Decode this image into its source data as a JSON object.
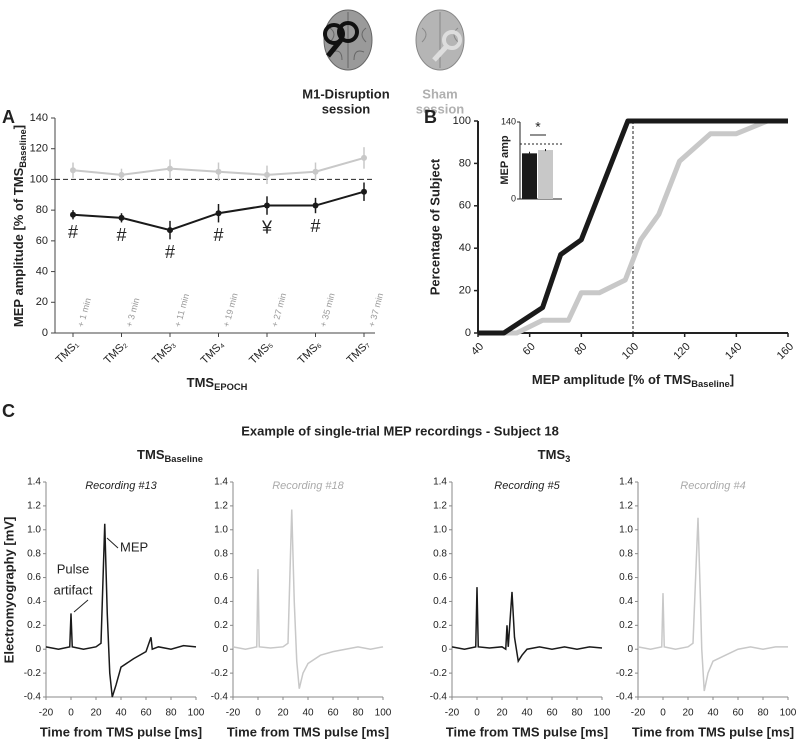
{
  "header": {
    "m1_label": [
      "M1-Disruption",
      "session"
    ],
    "sham_label": [
      "Sham",
      "session"
    ],
    "panels": [
      "A",
      "B",
      "C"
    ],
    "panel_c_title": "Example of single-trial MEP recordings - Subject 18",
    "group_titles": [
      [
        "TMS",
        "Baseline"
      ],
      [
        "TMS",
        "3"
      ]
    ]
  },
  "chart_data": [
    {
      "type": "line",
      "categories": [
        "TMS₁",
        "TMS₂",
        "TMS₃",
        "TMS₄",
        "TMS₅",
        "TMS₆",
        "TMS₇"
      ],
      "category_notes": [
        "+ 1 min",
        "+ 3 min",
        "+ 11 min",
        "+ 19 min",
        "+ 27 min",
        "+ 35 min",
        "+ 37 min"
      ],
      "ylabel": [
        "MEP amplitude [% of TMS",
        "Baseline",
        "]"
      ],
      "xlabel": [
        "TMS",
        "EPOCH"
      ],
      "ylim": [
        0,
        140
      ],
      "yticks": [
        0,
        20,
        40,
        60,
        80,
        100,
        120,
        140
      ],
      "reference_line": 100,
      "series": [
        {
          "color": "#c8c8c8",
          "values": [
            106,
            103,
            107,
            105,
            103,
            105,
            114
          ],
          "errors": [
            5,
            4,
            6,
            6,
            6,
            6,
            7
          ]
        },
        {
          "color": "#1a1a1a",
          "values": [
            77,
            75,
            67,
            78,
            83,
            83,
            92
          ],
          "errors": [
            3,
            3,
            6,
            6,
            6,
            5,
            6
          ],
          "symbols": [
            "#",
            "#",
            "#",
            "#",
            "¥",
            "#",
            null
          ]
        }
      ]
    },
    {
      "type": "line",
      "xlabel": [
        "MEP amplitude [% of TMS",
        "Baseline",
        "]"
      ],
      "ylabel": "Percentage of Subject",
      "xlim": [
        40,
        160
      ],
      "xticks": [
        40,
        60,
        80,
        100,
        120,
        140,
        160
      ],
      "ylim": [
        0,
        100
      ],
      "yticks": [
        0,
        20,
        40,
        60,
        80,
        100
      ],
      "reference_x": 100,
      "series": [
        {
          "color": "#c8c8c8",
          "x": [
            40,
            55,
            65,
            75,
            80,
            87,
            97,
            103,
            110,
            118,
            130,
            140,
            152,
            160
          ],
          "values": [
            0,
            0,
            6,
            6,
            19,
            19,
            25,
            44,
            56,
            81,
            94,
            94,
            100,
            100
          ]
        },
        {
          "color": "#1a1a1a",
          "x": [
            40,
            50,
            65,
            72,
            80,
            98,
            160
          ],
          "values": [
            0,
            0,
            12,
            37,
            44,
            100,
            100
          ]
        }
      ]
    },
    {
      "type": "bar",
      "ylabel": "MEP amp",
      "values": [
        83,
        89
      ],
      "errors": [
        3,
        2
      ],
      "colors": [
        "#1a1a1a",
        "#c8c8c8"
      ],
      "ylim": [
        0,
        140
      ],
      "yticks": [
        0,
        140
      ],
      "reference_line": 100,
      "annotation": "*"
    },
    {
      "type": "line",
      "title": "Recording #13",
      "ylabel": "Electromyography [mV]",
      "xlabel": "Time from TMS pulse [ms]",
      "xlim": [
        -20,
        100
      ],
      "xticks": [
        -20,
        0,
        20,
        40,
        60,
        80,
        100
      ],
      "ylim": [
        -0.4,
        1.4
      ],
      "yticks": [
        -0.4,
        -0.2,
        0,
        0.2,
        0.4,
        0.6,
        0.8,
        {
          "value": 1,
          "label": "1.0"
        },
        1.2,
        1.4
      ],
      "annotations": [
        "Pulse",
        "artifact",
        "MEP"
      ],
      "series": [
        {
          "color": "#1a1a1a",
          "x": [
            -20,
            -10,
            -1,
            0,
            1,
            10,
            20,
            24,
            27,
            29,
            31,
            33,
            36,
            40,
            50,
            60,
            64,
            65,
            70,
            80,
            90,
            100
          ],
          "values": [
            0.02,
            0,
            0.02,
            0.3,
            0.02,
            0,
            0.02,
            0.05,
            1.05,
            0.3,
            -0.2,
            -0.4,
            -0.3,
            -0.15,
            -0.08,
            -0.02,
            0.1,
            0,
            0.02,
            0,
            0.03,
            0.02
          ]
        }
      ]
    },
    {
      "type": "line",
      "title": "Recording #18",
      "xlabel": "Time from TMS pulse [ms]",
      "xlim": [
        -20,
        100
      ],
      "xticks": [
        -20,
        0,
        20,
        40,
        60,
        80,
        100
      ],
      "ylim": [
        -0.4,
        1.4
      ],
      "yticks": [
        -0.4,
        -0.2,
        0,
        0.2,
        0.4,
        0.6,
        0.8,
        {
          "value": 1,
          "label": "1.0"
        },
        1.2,
        1.4
      ],
      "series": [
        {
          "color": "#c8c8c8",
          "x": [
            -20,
            -10,
            -1,
            0,
            1,
            10,
            20,
            24,
            27,
            29,
            31,
            33,
            36,
            40,
            50,
            60,
            70,
            80,
            90,
            100
          ],
          "values": [
            0.02,
            0,
            0.02,
            0.67,
            0.02,
            0.01,
            0.02,
            0.05,
            1.17,
            0.4,
            -0.1,
            -0.33,
            -0.2,
            -0.12,
            -0.05,
            -0.02,
            0,
            0.02,
            0,
            0.02
          ]
        }
      ]
    },
    {
      "type": "line",
      "title": "Recording #5",
      "xlabel": "Time from TMS pulse [ms]",
      "xlim": [
        -20,
        100
      ],
      "xticks": [
        -20,
        0,
        20,
        40,
        60,
        80,
        100
      ],
      "ylim": [
        -0.4,
        1.4
      ],
      "yticks": [
        -0.4,
        -0.2,
        0,
        0.2,
        0.4,
        0.6,
        0.8,
        {
          "value": 1,
          "label": "1.0"
        },
        1.2,
        1.4
      ],
      "series": [
        {
          "color": "#1a1a1a",
          "x": [
            -20,
            -10,
            -1,
            0,
            1,
            10,
            20,
            23,
            24,
            25,
            28,
            30,
            33,
            36,
            40,
            50,
            60,
            70,
            80,
            90,
            100
          ],
          "values": [
            0.02,
            0,
            0.02,
            0.52,
            0.02,
            0.01,
            0.02,
            0,
            0.2,
            0.02,
            0.48,
            0.1,
            -0.1,
            -0.05,
            0,
            0.02,
            0,
            0.02,
            0,
            0.02,
            0.01
          ]
        }
      ]
    },
    {
      "type": "line",
      "title": "Recording #4",
      "xlabel": "Time from TMS pulse [ms]",
      "xlim": [
        -20,
        100
      ],
      "xticks": [
        -20,
        0,
        20,
        40,
        60,
        80,
        100
      ],
      "ylim": [
        -0.4,
        1.4
      ],
      "yticks": [
        -0.4,
        -0.2,
        0,
        0.2,
        0.4,
        0.6,
        0.8,
        {
          "value": 1,
          "label": "1.0"
        },
        1.2,
        1.4
      ],
      "series": [
        {
          "color": "#c8c8c8",
          "x": [
            -20,
            -10,
            -1,
            0,
            1,
            10,
            20,
            24,
            28,
            30,
            31,
            33,
            36,
            40,
            50,
            60,
            70,
            80,
            90,
            100
          ],
          "values": [
            0.02,
            0,
            0.02,
            0.47,
            0.02,
            0,
            0.02,
            0.05,
            1.1,
            0.4,
            0,
            -0.35,
            -0.2,
            -0.1,
            -0.05,
            0,
            0.02,
            0,
            0.02,
            0.02
          ]
        }
      ]
    }
  ]
}
